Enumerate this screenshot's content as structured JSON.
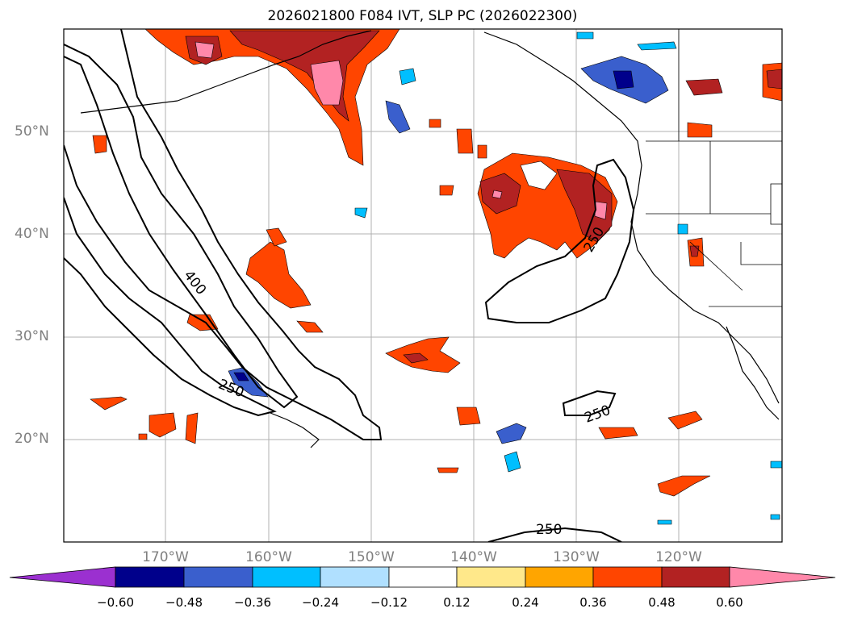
{
  "title": "2026021800 F084 IVT, SLP PC (2026022300)",
  "lat_labels": [
    "50°N",
    "40°N",
    "30°N",
    "20°N"
  ],
  "lon_labels": [
    "170°W",
    "160°W",
    "150°W",
    "140°W",
    "130°W",
    "120°W"
  ],
  "contour_labels": [
    "400",
    "250",
    "250",
    "250",
    "250"
  ],
  "colorbar": {
    "tick_labels": [
      "−0.60",
      "−0.48",
      "−0.36",
      "−0.24",
      "−0.12",
      "0.12",
      "0.24",
      "0.36",
      "0.48",
      "0.60"
    ],
    "colors": [
      "#9b30d0",
      "#00008b",
      "#3a5fcd",
      "#00bfff",
      "#b0e0ff",
      "#ffffff",
      "#ffe88a",
      "#ffa500",
      "#ff4500",
      "#b22222",
      "#ff88aa"
    ]
  },
  "colors": {
    "pos_low": "#ffe88a",
    "pos_mid": "#ffa500",
    "pos_orange": "#ff4500",
    "pos_dark": "#b22222",
    "pos_pink": "#ff88aa",
    "neg_light": "#b0e0ff",
    "neg_cyan": "#00bfff",
    "neg_blue": "#3a5fcd",
    "neg_dark": "#00008b",
    "grid": "#b0b0b0"
  }
}
